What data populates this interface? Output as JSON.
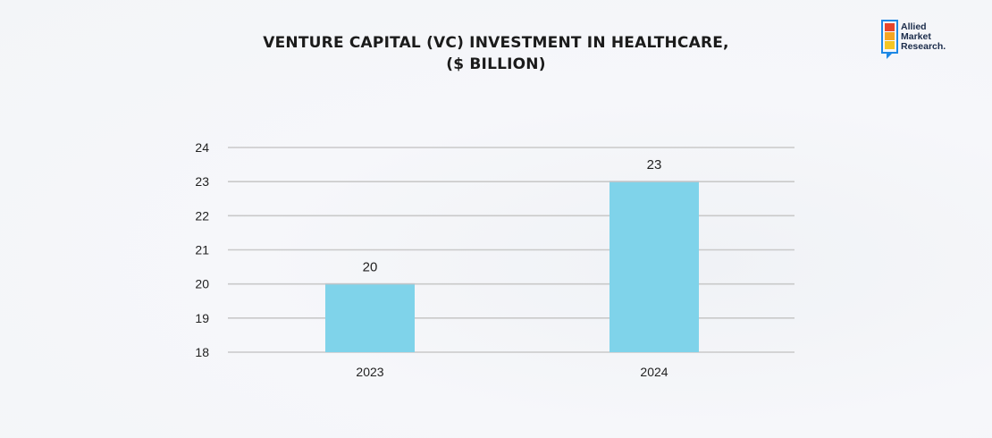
{
  "title_lines": [
    "VENTURE CAPITAL (VC) INVESTMENT IN HEALTHCARE,",
    "($ BILLION)"
  ],
  "logo": {
    "lines": [
      "Allied",
      "Market",
      "Research."
    ],
    "colors": [
      "#e8452c",
      "#f6a623",
      "#1e88e5"
    ]
  },
  "chart_data": {
    "type": "bar",
    "title": "VENTURE CAPITAL (VC) INVESTMENT IN HEALTHCARE, ($ BILLION)",
    "categories": [
      "2023",
      "2024"
    ],
    "values": [
      20,
      23
    ],
    "data_labels": [
      "20",
      "23"
    ],
    "xlabel": "",
    "ylabel": "",
    "ylim": [
      18,
      24
    ],
    "yticks": [
      18,
      19,
      20,
      21,
      22,
      23,
      24
    ],
    "grid": true,
    "bar_color": "#7fd3ea",
    "grid_color": "#c9c9c9"
  }
}
